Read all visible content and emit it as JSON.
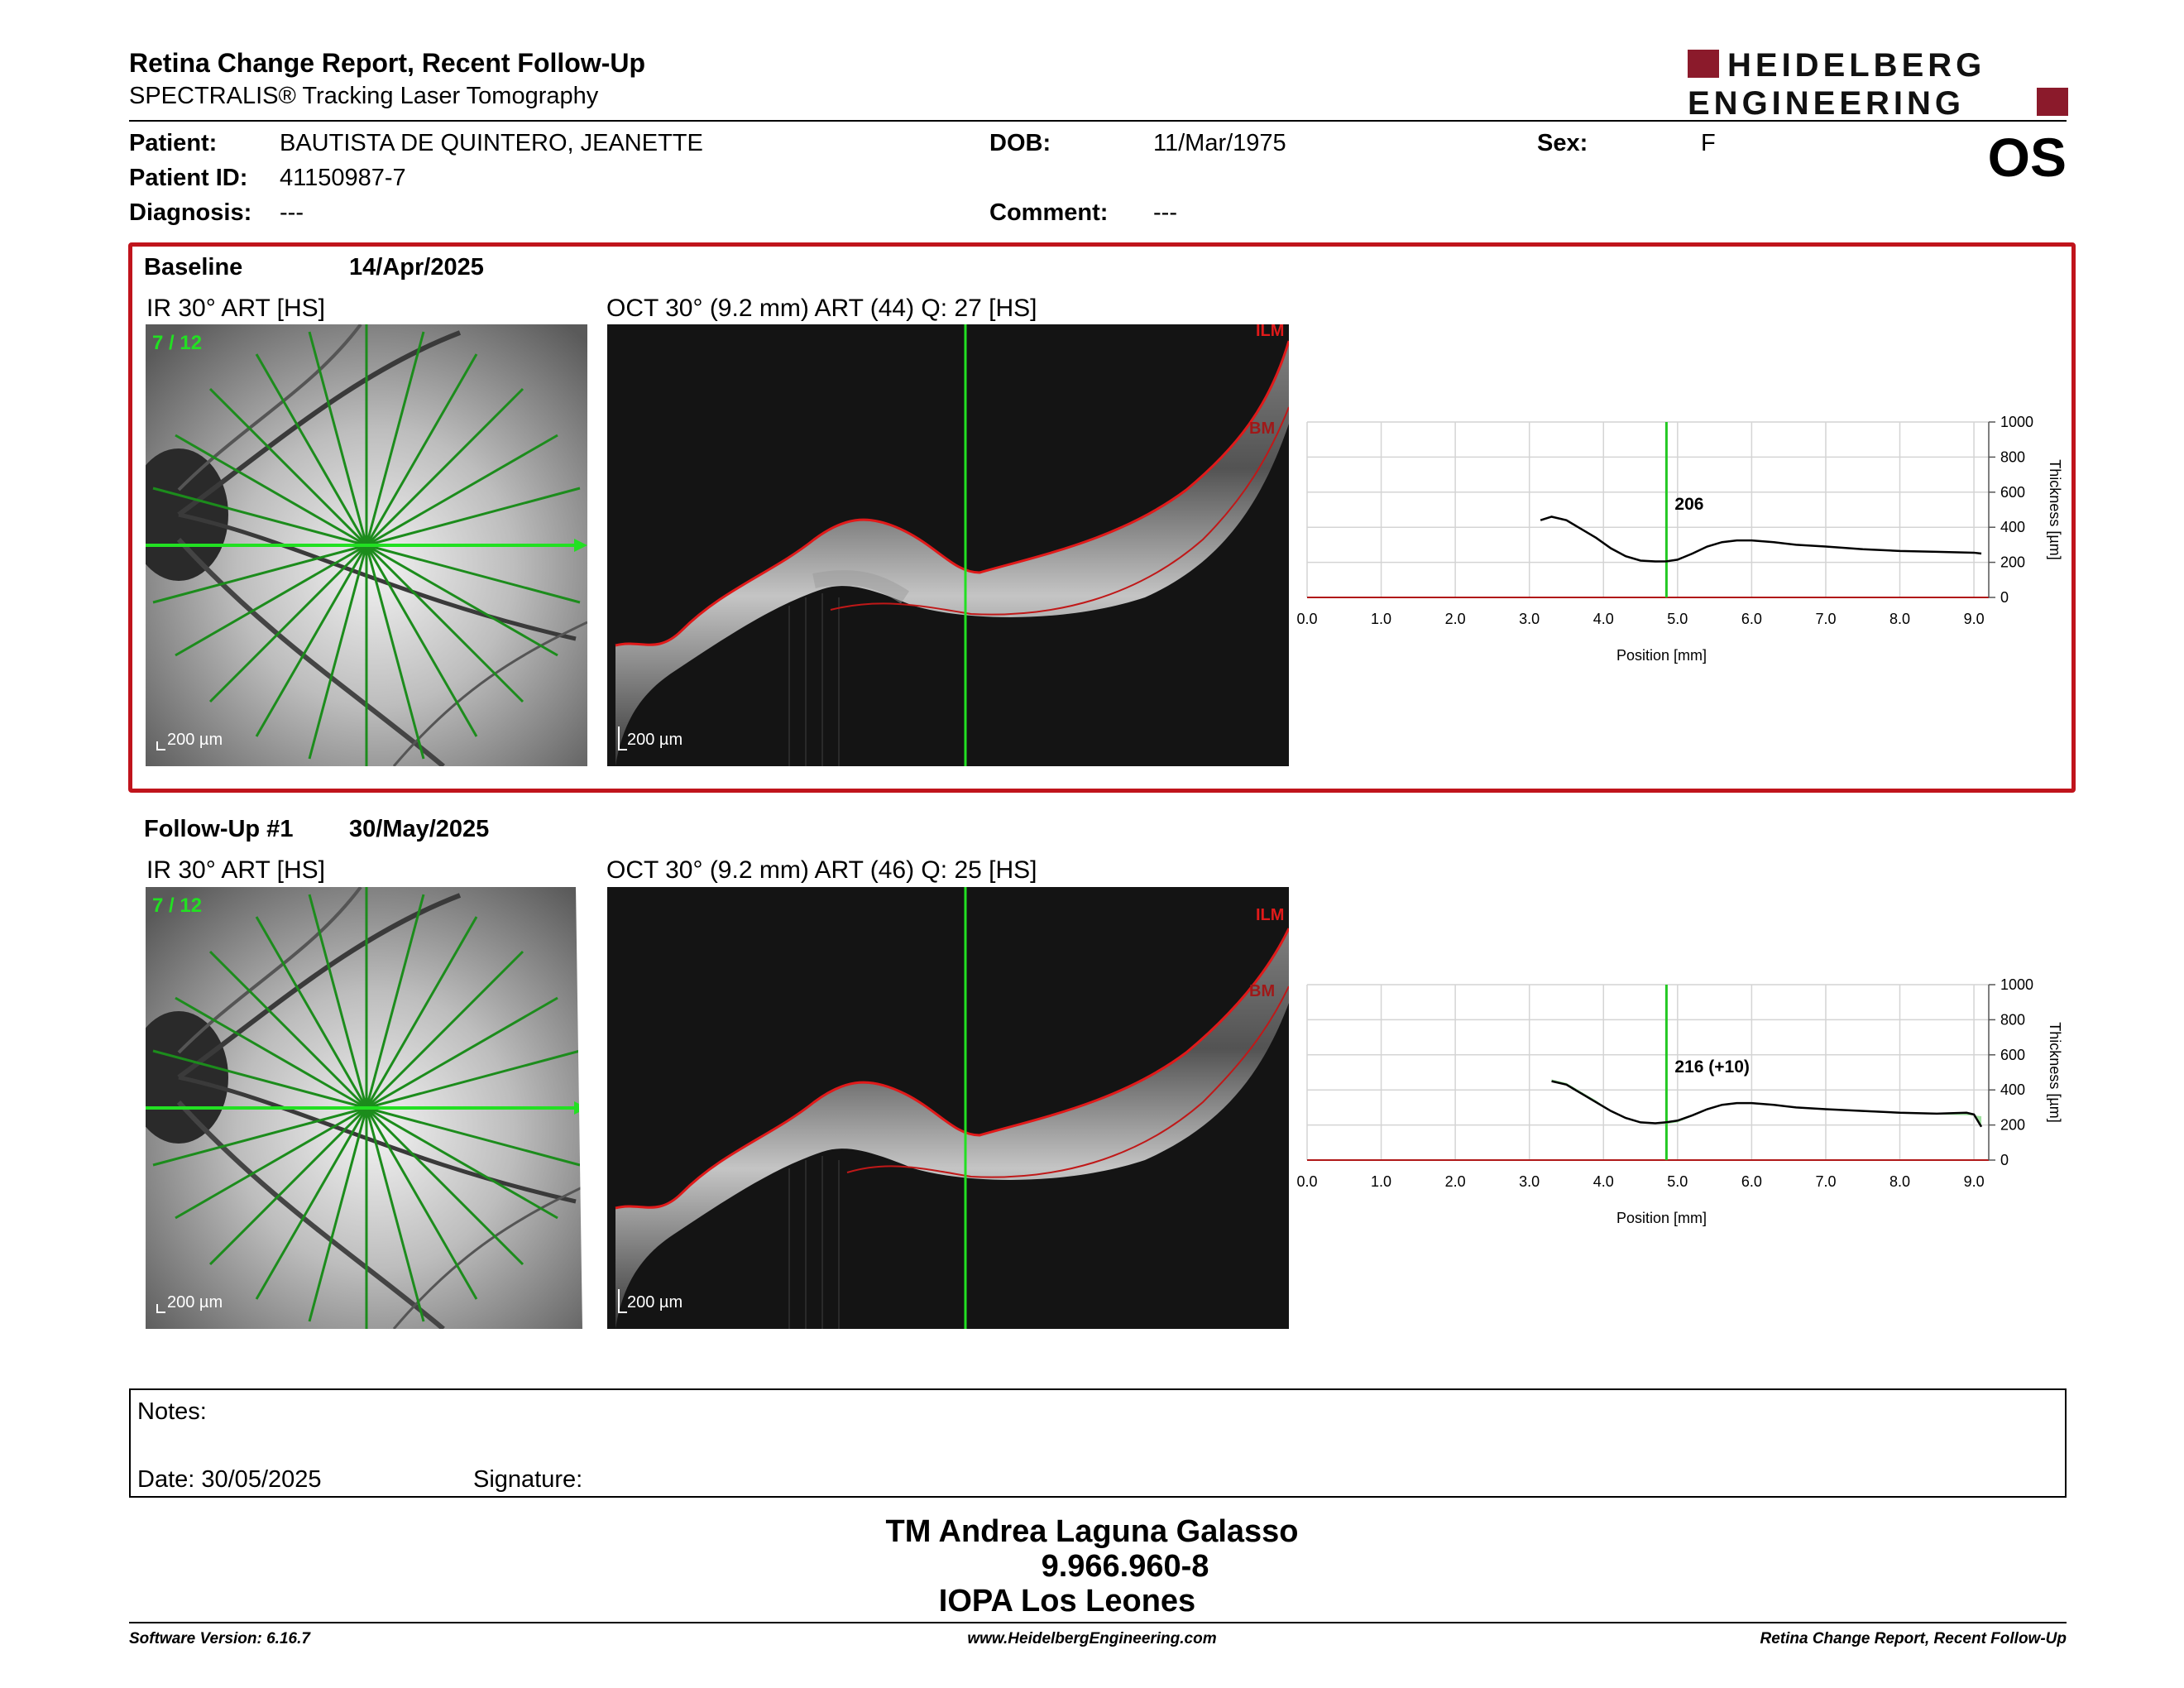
{
  "header": {
    "title": "Retina Change Report, Recent Follow-Up",
    "subtitle": "SPECTRALIS® Tracking Laser Tomography",
    "logo_line1": "HEIDELBERG",
    "logo_line2": "ENGINEERING",
    "brand_color": "#8b1a2b"
  },
  "patient": {
    "patient_label": "Patient:",
    "patient_name": "BAUTISTA DE QUINTERO, JEANETTE",
    "id_label": "Patient ID:",
    "id_value": "41150987-7",
    "diagnosis_label": "Diagnosis:",
    "diagnosis_value": "---",
    "dob_label": "DOB:",
    "dob_value": "11/Mar/1975",
    "comment_label": "Comment:",
    "comment_value": "---",
    "sex_label": "Sex:",
    "sex_value": "F",
    "eye": "OS"
  },
  "baseline": {
    "label": "Baseline",
    "date": "14/Apr/2025",
    "ir_label": "IR 30° ART [HS]",
    "oct_label": "OCT 30° (9.2 mm) ART (44) Q: 27 [HS]",
    "scan_index": "7 / 12",
    "scale_ir": "200 µm",
    "scale_oct": "200 µm",
    "ilm": "ILM",
    "bm": "BM",
    "highlight_color": "#c0141c"
  },
  "followup": {
    "label": "Follow-Up #1",
    "date": "30/May/2025",
    "ir_label": "IR 30° ART [HS]",
    "oct_label": "OCT 30° (9.2 mm) ART (46) Q: 25 [HS]",
    "scan_index": "7 / 12",
    "scale_ir": "200 µm",
    "scale_oct": "200 µm",
    "ilm": "ILM",
    "bm": "BM"
  },
  "chart_data": [
    {
      "type": "line",
      "xlabel": "Position [mm]",
      "ylabel": "Thickness [µm]",
      "xlim": [
        0,
        9.2
      ],
      "ylim": [
        0,
        1000
      ],
      "x_ticks": [
        "0.0",
        "1.0",
        "2.0",
        "3.0",
        "4.0",
        "5.0",
        "6.0",
        "7.0",
        "8.0",
        "9.0"
      ],
      "y_ticks": [
        "0",
        "200",
        "400",
        "600",
        "800",
        "1000"
      ],
      "grid": true,
      "marker_x": 4.85,
      "marker_label": "206",
      "series": [
        {
          "x": [
            3.15,
            3.3,
            3.5,
            3.7,
            3.9,
            4.1,
            4.3,
            4.5,
            4.7,
            4.85,
            5.0,
            5.2,
            5.4,
            5.6,
            5.8,
            6.0,
            6.3,
            6.6,
            7.0,
            7.5,
            8.0,
            8.5,
            9.0,
            9.1
          ],
          "y": [
            440,
            460,
            440,
            390,
            340,
            280,
            235,
            210,
            205,
            206,
            215,
            250,
            290,
            315,
            325,
            325,
            315,
            300,
            290,
            275,
            265,
            260,
            255,
            250
          ]
        }
      ]
    },
    {
      "type": "line",
      "xlabel": "Position [mm]",
      "ylabel": "Thickness [µm]",
      "xlim": [
        0,
        9.2
      ],
      "ylim": [
        0,
        1000
      ],
      "x_ticks": [
        "0.0",
        "1.0",
        "2.0",
        "3.0",
        "4.0",
        "5.0",
        "6.0",
        "7.0",
        "8.0",
        "9.0"
      ],
      "y_ticks": [
        "0",
        "200",
        "400",
        "600",
        "800",
        "1000"
      ],
      "grid": true,
      "marker_x": 4.85,
      "marker_label": "216 (+10)",
      "series": [
        {
          "x": [
            3.3,
            3.5,
            3.7,
            3.9,
            4.1,
            4.3,
            4.5,
            4.7,
            4.85,
            5.0,
            5.2,
            5.4,
            5.6,
            5.8,
            6.0,
            6.3,
            6.6,
            7.0,
            7.5,
            8.0,
            8.5,
            8.9,
            9.0,
            9.1
          ],
          "y": [
            450,
            430,
            380,
            330,
            280,
            240,
            215,
            210,
            216,
            225,
            255,
            290,
            315,
            325,
            325,
            315,
            300,
            290,
            280,
            270,
            265,
            270,
            260,
            190
          ]
        }
      ]
    }
  ],
  "notes": {
    "notes_label": "Notes:",
    "date_label": "Date: 30/05/2025",
    "signature_label": "Signature:"
  },
  "signature": {
    "name": "TM Andrea Laguna Galasso",
    "id": "9.966.960-8",
    "org": "IOPA Los Leones"
  },
  "footer": {
    "software": "Software Version: 6.16.7",
    "website": "www.HeidelbergEngineering.com",
    "report_name": "Retina Change Report, Recent Follow-Up"
  }
}
